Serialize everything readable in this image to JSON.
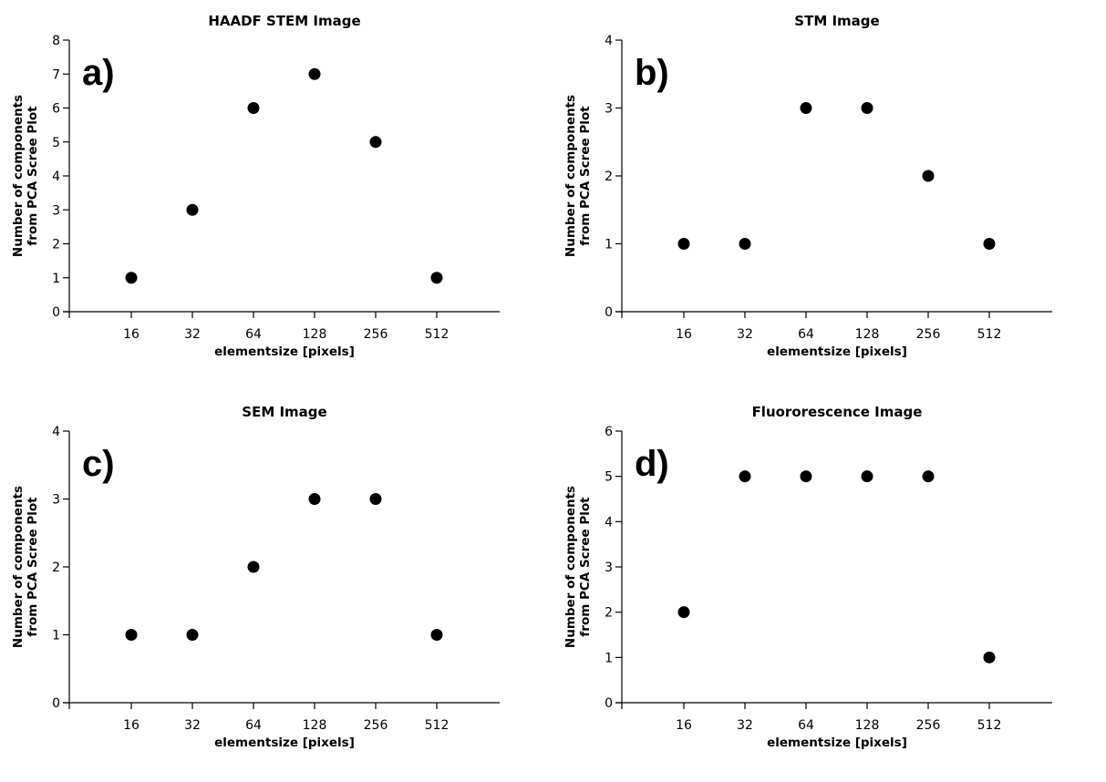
{
  "chart_data": [
    {
      "type": "scatter",
      "panel_label": "a)",
      "title": "HAADF STEM Image",
      "xlabel": "elementsize [pixels]",
      "ylabel_lines": [
        "Number of components",
        "from PCA Scree Plot"
      ],
      "categories": [
        "16",
        "32",
        "64",
        "128",
        "256",
        "512"
      ],
      "values": [
        1,
        3,
        6,
        7,
        5,
        1
      ],
      "ylim": [
        0,
        8
      ],
      "yticks": [
        0,
        1,
        2,
        3,
        4,
        5,
        6,
        7,
        8
      ],
      "grid": false
    },
    {
      "type": "scatter",
      "panel_label": "b)",
      "title": "STM Image",
      "xlabel": "elementsize [pixels]",
      "ylabel_lines": [
        "Number of components",
        "from PCA Scree Plot"
      ],
      "categories": [
        "16",
        "32",
        "64",
        "128",
        "256",
        "512"
      ],
      "values": [
        1,
        1,
        3,
        3,
        2,
        1
      ],
      "ylim": [
        0,
        4
      ],
      "yticks": [
        0,
        1,
        2,
        3,
        4
      ],
      "grid": false
    },
    {
      "type": "scatter",
      "panel_label": "c)",
      "title": "SEM Image",
      "xlabel": "elementsize [pixels]",
      "ylabel_lines": [
        "Number of components",
        "from PCA Scree Plot"
      ],
      "categories": [
        "16",
        "32",
        "64",
        "128",
        "256",
        "512"
      ],
      "values": [
        1,
        1,
        2,
        3,
        3,
        1
      ],
      "ylim": [
        0,
        4
      ],
      "yticks": [
        0,
        1,
        2,
        3,
        4
      ],
      "grid": false
    },
    {
      "type": "scatter",
      "panel_label": "d)",
      "title": "Fluororescence Image",
      "xlabel": "elementsize [pixels]",
      "ylabel_lines": [
        "Number of components",
        "from PCA Scree Plot"
      ],
      "categories": [
        "16",
        "32",
        "64",
        "128",
        "256",
        "512"
      ],
      "values": [
        2,
        5,
        5,
        5,
        5,
        1
      ],
      "ylim": [
        0,
        6
      ],
      "yticks": [
        0,
        1,
        2,
        3,
        4,
        5,
        6
      ],
      "grid": false
    }
  ]
}
